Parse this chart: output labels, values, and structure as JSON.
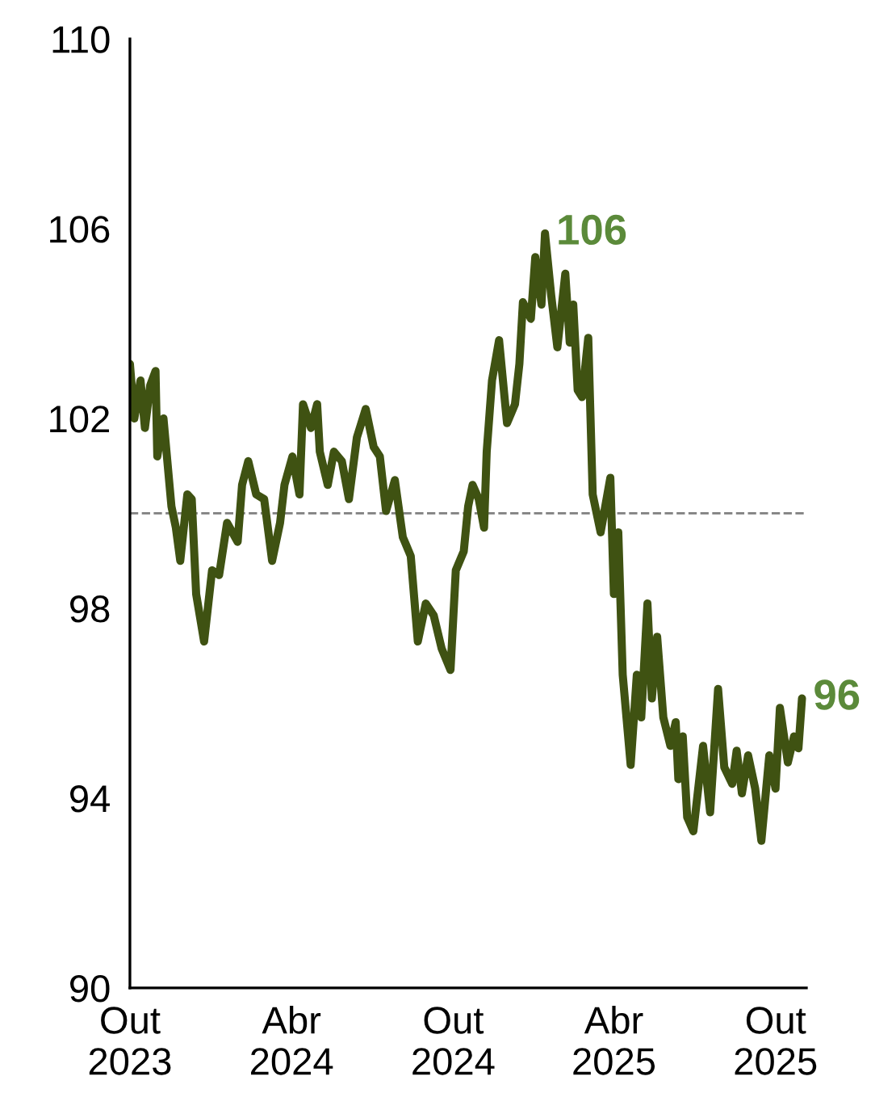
{
  "chart_data": {
    "type": "line",
    "x": [
      "2023-10-01",
      "2023-10-06",
      "2023-10-13",
      "2023-10-18",
      "2023-10-24",
      "2023-10-30",
      "2023-11-01",
      "2023-11-08",
      "2023-11-17",
      "2023-11-22",
      "2023-11-27",
      "2023-12-05",
      "2023-12-10",
      "2023-12-15",
      "2023-12-24",
      "2024-01-02",
      "2024-01-10",
      "2024-01-19",
      "2024-01-31",
      "2024-02-05",
      "2024-02-12",
      "2024-02-21",
      "2024-03-01",
      "2024-03-10",
      "2024-03-19",
      "2024-03-24",
      "2024-04-02",
      "2024-04-10",
      "2024-04-14",
      "2024-04-23",
      "2024-04-30",
      "2024-05-03",
      "2024-05-12",
      "2024-05-19",
      "2024-05-28",
      "2024-06-05",
      "2024-06-14",
      "2024-06-24",
      "2024-07-03",
      "2024-07-10",
      "2024-07-17",
      "2024-07-27",
      "2024-08-05",
      "2024-08-14",
      "2024-08-22",
      "2024-08-31",
      "2024-09-09",
      "2024-09-18",
      "2024-09-28",
      "2024-10-04",
      "2024-10-13",
      "2024-10-18",
      "2024-10-23",
      "2024-10-30",
      "2024-11-05",
      "2024-11-08",
      "2024-11-14",
      "2024-11-22",
      "2024-12-01",
      "2024-12-10",
      "2024-12-15",
      "2024-12-19",
      "2024-12-28",
      "2025-01-02",
      "2025-01-09",
      "2025-01-13",
      "2025-01-20",
      "2025-01-27",
      "2025-02-05",
      "2025-02-10",
      "2025-02-14",
      "2025-02-19",
      "2025-02-24",
      "2025-03-03",
      "2025-03-08",
      "2025-03-17",
      "2025-03-28",
      "2025-04-01",
      "2025-04-06",
      "2025-04-11",
      "2025-04-20",
      "2025-04-27",
      "2025-05-02",
      "2025-05-09",
      "2025-05-14",
      "2025-05-20",
      "2025-05-27",
      "2025-06-04",
      "2025-06-10",
      "2025-06-13",
      "2025-06-18",
      "2025-06-23",
      "2025-06-30",
      "2025-07-11",
      "2025-07-19",
      "2025-07-28",
      "2025-08-04",
      "2025-08-13",
      "2025-08-18",
      "2025-08-24",
      "2025-08-31",
      "2025-09-08",
      "2025-09-15",
      "2025-09-24",
      "2025-10-01",
      "2025-10-06",
      "2025-10-15",
      "2025-10-22",
      "2025-10-27",
      "2025-10-31"
    ],
    "series": [
      {
        "color": "#3f5212",
        "values": [
          103.15,
          102.0,
          102.8,
          101.8,
          102.7,
          103.0,
          101.2,
          102.0,
          100.15,
          99.7,
          99.0,
          100.4,
          100.3,
          98.3,
          97.3,
          98.8,
          98.7,
          99.8,
          99.4,
          100.6,
          101.1,
          100.4,
          100.3,
          99.0,
          99.8,
          100.6,
          101.2,
          100.4,
          102.3,
          101.8,
          102.3,
          101.3,
          100.6,
          101.3,
          101.1,
          100.3,
          101.6,
          102.2,
          101.4,
          101.2,
          100.05,
          100.7,
          99.5,
          99.1,
          97.3,
          98.1,
          97.85,
          97.15,
          96.7,
          98.8,
          99.2,
          100.15,
          100.6,
          100.3,
          99.7,
          101.3,
          102.8,
          103.65,
          101.9,
          102.3,
          103.15,
          104.45,
          104.1,
          105.4,
          104.4,
          105.9,
          104.6,
          103.5,
          105.05,
          103.6,
          104.4,
          102.6,
          102.45,
          103.7,
          100.4,
          99.6,
          100.75,
          98.3,
          99.6,
          96.6,
          94.7,
          96.6,
          95.7,
          98.1,
          96.1,
          97.4,
          95.7,
          95.1,
          95.6,
          94.4,
          95.3,
          93.6,
          93.3,
          95.1,
          93.7,
          96.3,
          94.65,
          94.3,
          95.0,
          94.1,
          94.9,
          94.2,
          93.1,
          94.9,
          94.2,
          95.9,
          94.75,
          95.3,
          95.05,
          96.1
        ]
      }
    ],
    "xlim": [
      "2023-10-01",
      "2025-11-05"
    ],
    "xticks": [
      {
        "value": "2023-10-01",
        "label": "Out\n2023"
      },
      {
        "value": "2024-04-01",
        "label": "Abr\n2024"
      },
      {
        "value": "2024-10-01",
        "label": "Out\n2024"
      },
      {
        "value": "2025-04-01",
        "label": "Abr\n2025"
      },
      {
        "value": "2025-10-01",
        "label": "Out\n2025"
      }
    ],
    "ylim": [
      90,
      110
    ],
    "yticks": [
      90,
      94,
      98,
      102,
      106,
      110
    ],
    "ref_lines": [
      {
        "axis": "y",
        "value": 100,
        "color": "#808080",
        "line_style": "dashed"
      }
    ],
    "annotations": [
      {
        "text": "106",
        "x": "2025-01-13",
        "y": 105.9
      },
      {
        "text": "96",
        "x": "2025-10-31",
        "y": 96.1
      }
    ],
    "grid": false,
    "legend": false,
    "marker": "none",
    "line_style": "solid"
  }
}
